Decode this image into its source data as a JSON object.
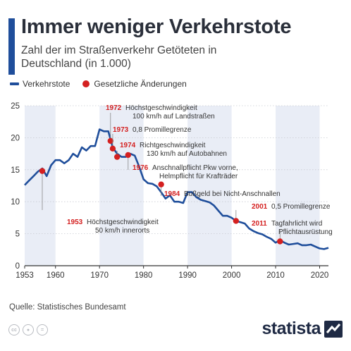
{
  "header": {
    "title": "Immer weniger Verkehrstote",
    "subtitle": "Zahl der im Straßenverkehr Getöteten in Deutschland (in 1.000)"
  },
  "legend": {
    "line_label": "Verkehrstote",
    "marker_label": "Gesetzliche Änderungen"
  },
  "footer": {
    "source": "Quelle: Statistisches Bundesamt",
    "brand": "statista",
    "cc_icons": [
      "cc-icon",
      "by-icon",
      "nd-icon"
    ]
  },
  "colors": {
    "accent": "#1f4e9b",
    "line": "#1f4e9b",
    "marker": "#d42020",
    "label_year": "#d42020",
    "band": "#e9edf6",
    "grid": "#c9ccd2",
    "brand": "#1f2a44"
  },
  "chart_data": {
    "type": "line",
    "x_tick_labels": [
      "1953",
      "1960",
      "1970",
      "1980",
      "1990",
      "2000",
      "2010",
      "2020"
    ],
    "x_ticks": [
      1953,
      1960,
      1970,
      1980,
      1990,
      2000,
      2010,
      2020
    ],
    "y_ticks": [
      0,
      5,
      10,
      15,
      20,
      25
    ],
    "xlim": [
      1953,
      2022
    ],
    "ylim": [
      0,
      25
    ],
    "grid": true,
    "series": [
      {
        "name": "Verkehrstote",
        "x": [
          1953,
          1954,
          1955,
          1956,
          1957,
          1958,
          1959,
          1960,
          1961,
          1962,
          1963,
          1964,
          1965,
          1966,
          1967,
          1968,
          1969,
          1970,
          1971,
          1972,
          1973,
          1974,
          1975,
          1976,
          1977,
          1978,
          1979,
          1980,
          1981,
          1982,
          1983,
          1984,
          1985,
          1986,
          1987,
          1988,
          1989,
          1990,
          1991,
          1992,
          1993,
          1994,
          1995,
          1996,
          1997,
          1998,
          1999,
          2000,
          2001,
          2002,
          2003,
          2004,
          2005,
          2006,
          2007,
          2008,
          2009,
          2010,
          2011,
          2012,
          2013,
          2014,
          2015,
          2016,
          2017,
          2018,
          2019,
          2020,
          2021,
          2022
        ],
        "y": [
          12.6,
          13.3,
          14.0,
          14.7,
          15.2,
          14.0,
          15.7,
          16.5,
          16.5,
          16.0,
          16.5,
          17.5,
          17.0,
          18.5,
          18.0,
          18.7,
          18.7,
          21.3,
          21.0,
          21.0,
          18.5,
          17.5,
          17.0,
          17.0,
          17.5,
          17.2,
          15.5,
          13.5,
          12.9,
          12.8,
          12.4,
          11.5,
          10.5,
          11.0,
          10.0,
          10.0,
          9.8,
          11.5,
          11.5,
          10.7,
          10.3,
          10.1,
          9.9,
          9.4,
          8.6,
          7.8,
          7.8,
          7.5,
          7.0,
          6.8,
          6.6,
          5.8,
          5.4,
          5.1,
          4.9,
          4.5,
          4.2,
          3.6,
          4.0,
          3.6,
          3.3,
          3.4,
          3.5,
          3.2,
          3.2,
          3.3,
          3.0,
          2.7,
          2.6,
          2.8
        ]
      }
    ],
    "annotations": [
      {
        "x": 1957,
        "y": 14.8,
        "year": "1953",
        "text": [
          "Höchstgeschwindigkeit",
          "50 km/h innerorts"
        ]
      },
      {
        "x": 1972.5,
        "y": 19.5,
        "year": "1972",
        "text": [
          "Höchstgeschwindigkeit",
          "100 km/h auf Landstraßen"
        ]
      },
      {
        "x": 1973,
        "y": 18.3,
        "year": "1973",
        "text": [
          "0,8 Promillegrenze"
        ]
      },
      {
        "x": 1974,
        "y": 17.0,
        "year": "1974",
        "text": [
          "Richtgeschwindigkeit",
          "130 km/h auf Autobahnen"
        ]
      },
      {
        "x": 1976.5,
        "y": 17.3,
        "year": "1976",
        "text": [
          "Anschnallpflicht Pkw vorne,",
          "Helmpflicht für Krafträder"
        ]
      },
      {
        "x": 1984,
        "y": 12.7,
        "year": "1984",
        "text": [
          "Bußgeld bei Nicht-Anschnallen"
        ]
      },
      {
        "x": 2001,
        "y": 7.0,
        "year": "2001",
        "text": [
          "0,5 Promillegrenze"
        ]
      },
      {
        "x": 2011,
        "y": 3.8,
        "year": "2011",
        "text": [
          "Tagfahrlicht wird",
          "Pflichtausrüstung"
        ]
      }
    ]
  }
}
